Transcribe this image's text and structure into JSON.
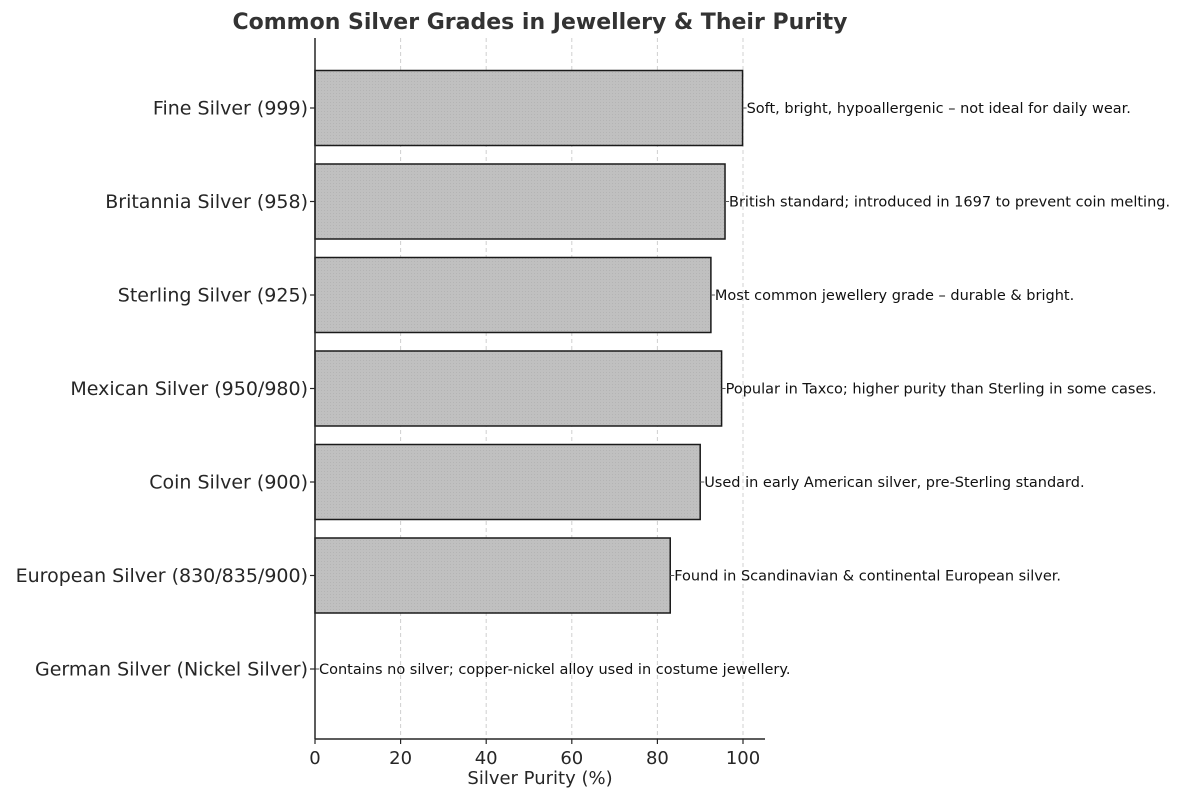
{
  "chart_data": {
    "type": "bar",
    "orientation": "horizontal",
    "title": "Common Silver Grades in Jewellery & Their Purity",
    "xlabel": "Silver Purity (%)",
    "ylabel": "",
    "xlim": [
      0,
      105
    ],
    "xticks": [
      0,
      20,
      40,
      60,
      80,
      100
    ],
    "grid": "vertical dashed",
    "legend": null,
    "categories": [
      "Fine Silver (999)",
      "Britannia Silver (958)",
      "Sterling Silver (925)",
      "Mexican Silver (950/980)",
      "Coin Silver (900)",
      "European Silver (830/835/900)",
      "German Silver (Nickel Silver)"
    ],
    "values": [
      99.9,
      95.8,
      92.5,
      95,
      90,
      83,
      0
    ],
    "annotations": [
      "Soft, bright, hypoallergenic – not ideal for daily wear.",
      "British standard; introduced in 1697 to prevent coin melting.",
      "Most common jewellery grade – durable & bright.",
      "Popular in Taxco; higher purity than Sterling in some cases.",
      "Used in early American silver, pre-Sterling standard.",
      "Found in Scandinavian & continental European silver.",
      "Contains no silver; copper-nickel alloy used in costume jewellery."
    ],
    "colors": {
      "bar_fill": "#c0c0c0",
      "bar_edge": "#1a1a1a",
      "grid": "#d0d0d0"
    }
  }
}
